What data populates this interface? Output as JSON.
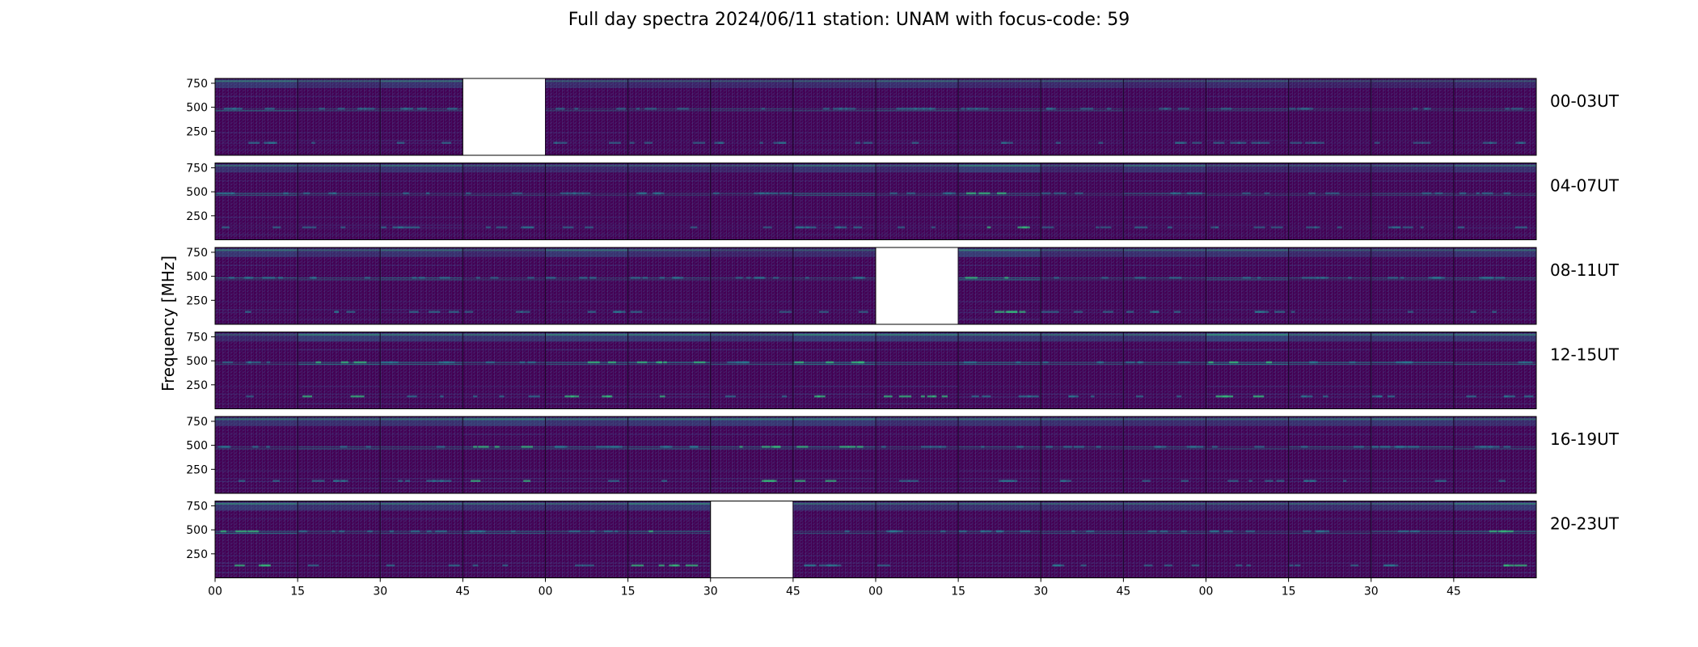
{
  "chart_data": {
    "type": "heatmap",
    "title": "Full day spectra 2024/06/11 station: UNAM with focus-code: 59",
    "ylabel": "Frequency [MHz]",
    "xlabel": "",
    "yticks": [
      250,
      500,
      750
    ],
    "ylim": [
      0,
      800
    ],
    "xticks": [
      "00",
      "15",
      "30",
      "45",
      "00",
      "15",
      "30",
      "45",
      "00",
      "15",
      "30",
      "45",
      "00",
      "15",
      "30",
      "45"
    ],
    "colormap": "viridis",
    "colors": {
      "background": "#440154",
      "high": "#35b779",
      "max": "#5ec962",
      "missing": "#ffffff"
    },
    "rows": [
      {
        "label": "00-03UT",
        "missing": [
          3
        ],
        "intensity": [
          0.3,
          0.22,
          0.28,
          null,
          0.22,
          0.2,
          0.2,
          0.22,
          0.26,
          0.2,
          0.22,
          0.18,
          0.22,
          0.16,
          0.16,
          0.2
        ]
      },
      {
        "label": "04-07UT",
        "missing": [],
        "intensity": [
          0.26,
          0.22,
          0.28,
          0.2,
          0.2,
          0.2,
          0.18,
          0.28,
          0.2,
          0.34,
          0.18,
          0.28,
          0.18,
          0.18,
          0.2,
          0.26
        ]
      },
      {
        "label": "08-11UT",
        "missing": [
          8
        ],
        "intensity": [
          0.3,
          0.24,
          0.28,
          0.2,
          0.3,
          0.24,
          0.18,
          0.22,
          null,
          0.34,
          0.22,
          0.26,
          0.28,
          0.22,
          0.22,
          0.28
        ]
      },
      {
        "label": "12-15UT",
        "missing": [],
        "intensity": [
          0.2,
          0.34,
          0.3,
          0.28,
          0.34,
          0.32,
          0.26,
          0.36,
          0.34,
          0.3,
          0.28,
          0.26,
          0.4,
          0.28,
          0.3,
          0.3
        ]
      },
      {
        "label": "16-19UT",
        "missing": [],
        "intensity": [
          0.28,
          0.26,
          0.28,
          0.34,
          0.28,
          0.3,
          0.32,
          0.32,
          0.24,
          0.28,
          0.26,
          0.24,
          0.24,
          0.28,
          0.3,
          0.24
        ]
      },
      {
        "label": "20-23UT",
        "missing": [
          6
        ],
        "intensity": [
          0.32,
          0.26,
          0.28,
          0.26,
          0.24,
          0.32,
          null,
          0.26,
          0.24,
          0.26,
          0.24,
          0.24,
          0.22,
          0.24,
          0.24,
          0.32
        ]
      }
    ]
  }
}
